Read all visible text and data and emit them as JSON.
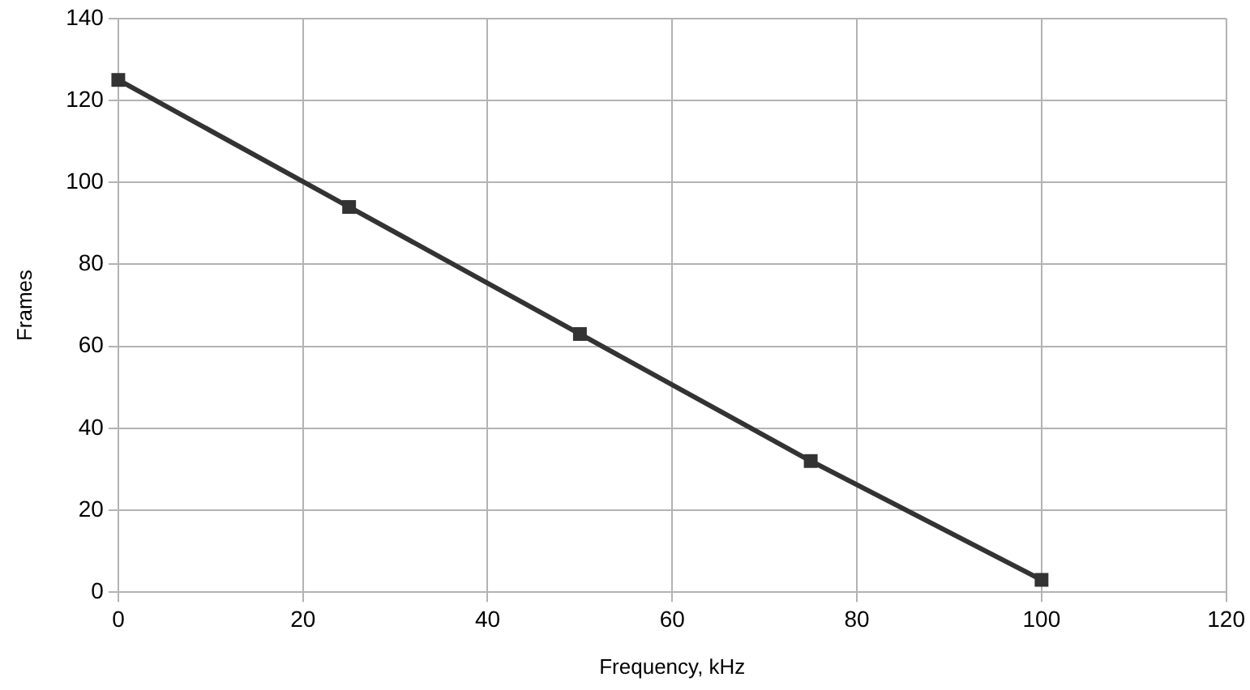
{
  "chart_data": {
    "type": "line",
    "xlabel": "Frequency, kHz",
    "ylabel": "Frames",
    "x": [
      0,
      25,
      50,
      75,
      100
    ],
    "series": [
      {
        "color": "#333333",
        "values": [
          125,
          94,
          63,
          32,
          3
        ]
      }
    ],
    "xlim": [
      0,
      120
    ],
    "xticks": [
      0,
      20,
      40,
      60,
      80,
      100,
      120
    ],
    "ylim": [
      0,
      140
    ],
    "yticks": [
      0,
      20,
      40,
      60,
      80,
      100,
      120,
      140
    ],
    "grid": true,
    "legend": false,
    "marker": "square",
    "line_style": "solid"
  }
}
